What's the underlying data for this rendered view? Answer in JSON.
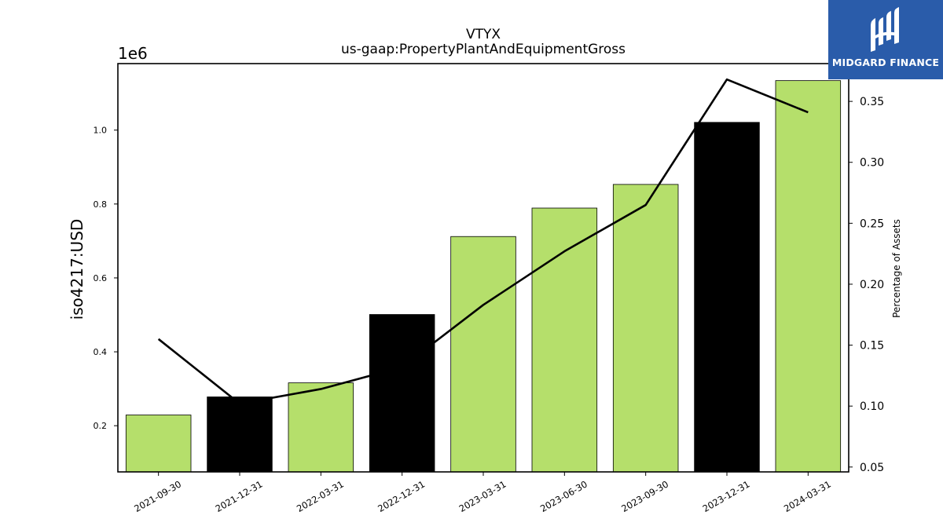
{
  "chart_data": {
    "type": "bar",
    "title": "VTYX",
    "subtitle": "us-gaap:PropertyPlantAndEquipmentGross",
    "ylabel": "iso4217:USD",
    "y_offset_label": "1e6",
    "y2label": "Percentage of Assets",
    "categories": [
      "2021-09-30",
      "2021-12-31",
      "2022-03-31",
      "2022-12-31",
      "2023-03-31",
      "2023-06-30",
      "2023-09-30",
      "2023-12-31",
      "2024-03-31"
    ],
    "series": [
      {
        "type": "bar",
        "axis": "left",
        "values": [
          229000,
          278000,
          316000,
          501000,
          712000,
          789000,
          853000,
          1021000,
          1134000
        ],
        "colors": [
          "#b5df6b",
          "#000000",
          "#b5df6b",
          "#000000",
          "#b5df6b",
          "#b5df6b",
          "#b5df6b",
          "#000000",
          "#b5df6b"
        ]
      },
      {
        "type": "line",
        "axis": "right",
        "color": "#000000",
        "values": [
          0.155,
          0.102,
          0.114,
          0.132,
          0.183,
          0.227,
          0.265,
          0.368,
          0.341
        ]
      }
    ],
    "ylim": [
      75000,
      1180000
    ],
    "y_ticks": [
      0.2,
      0.4,
      0.6,
      0.8,
      1.0
    ],
    "y_tick_labels": [
      "0.2",
      "0.4",
      "0.6",
      "0.8",
      "1.0"
    ],
    "y2lim": [
      0.046,
      0.381
    ],
    "y2_ticks": [
      0.05,
      0.1,
      0.15,
      0.2,
      0.25,
      0.3,
      0.35
    ],
    "y2_tick_labels": [
      "0.05",
      "0.10",
      "0.15",
      "0.20",
      "0.25",
      "0.30",
      "0.35"
    ],
    "grid": false,
    "legend": "none"
  },
  "logo": {
    "text": "MIDGARD FINANCE",
    "background": "#2a5caa"
  }
}
